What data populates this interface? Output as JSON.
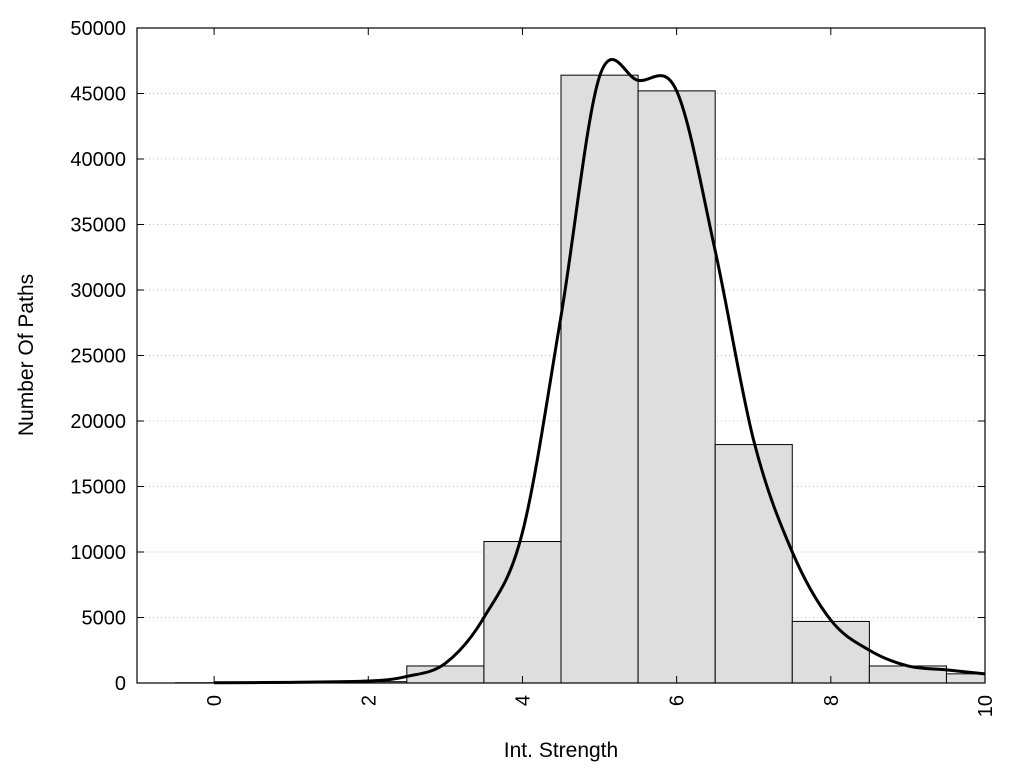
{
  "chart_data": {
    "type": "bar",
    "xlabel": "Int. Strength",
    "ylabel": "Number Of Paths",
    "xlim": [
      -1,
      10
    ],
    "ylim": [
      0,
      50000
    ],
    "x_ticks": [
      0,
      2,
      4,
      6,
      8,
      10
    ],
    "y_ticks": [
      0,
      5000,
      10000,
      15000,
      20000,
      25000,
      30000,
      35000,
      40000,
      45000,
      50000
    ],
    "grid": "horizontal-dotted",
    "colors": {
      "bar_fill": "#dedede",
      "bar_stroke": "#000000",
      "curve": "#000000",
      "grid": "#bbbbbb"
    },
    "series": [
      {
        "type": "bar",
        "bin_width": 1,
        "x": [
          0,
          1,
          2,
          3,
          4,
          5,
          6,
          7,
          8,
          9,
          10
        ],
        "values": [
          20,
          30,
          100,
          1300,
          10800,
          46400,
          45200,
          18200,
          4700,
          1300,
          700
        ]
      },
      {
        "type": "line",
        "x": [
          0,
          1,
          2,
          2.5,
          3,
          3.5,
          4,
          4.5,
          5,
          5.5,
          6,
          6.5,
          7,
          7.5,
          8,
          8.5,
          9,
          9.5,
          10
        ],
        "values": [
          20,
          50,
          150,
          500,
          1500,
          5000,
          11500,
          28000,
          46300,
          46000,
          45200,
          33000,
          18500,
          10000,
          4800,
          2500,
          1300,
          1000,
          700
        ]
      }
    ]
  }
}
